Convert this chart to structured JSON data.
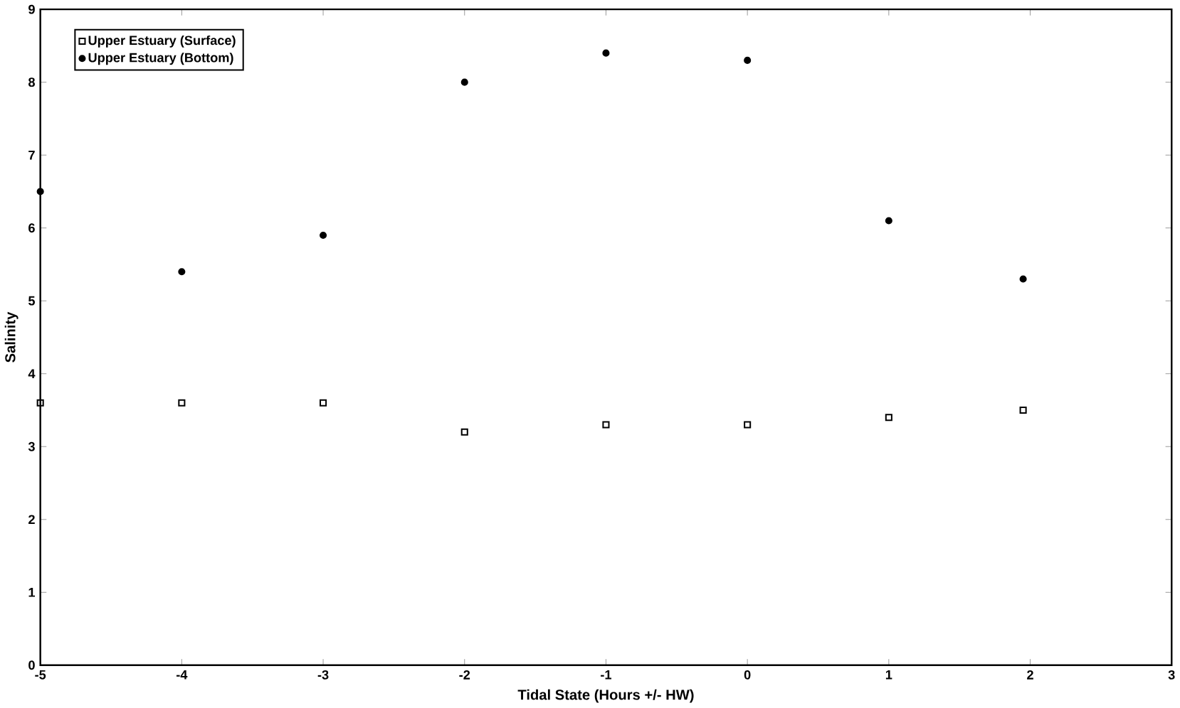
{
  "chart_data": {
    "type": "scatter",
    "xlabel": "Tidal State (Hours +/- HW)",
    "ylabel": "Salinity",
    "x": [
      -5,
      -4,
      -3,
      -2,
      -1,
      0,
      1,
      1.95
    ],
    "series": [
      {
        "name": "Upper Estuary (Surface)",
        "color": "#000000",
        "marker": "square",
        "values": [
          3.6,
          3.6,
          3.6,
          3.2,
          3.3,
          3.3,
          3.4,
          3.5
        ]
      },
      {
        "name": "Upper Estuary (Bottom)",
        "color": "#000000",
        "marker": "circle",
        "values": [
          6.5,
          5.4,
          5.9,
          8.0,
          8.4,
          8.3,
          6.1,
          5.3
        ]
      }
    ],
    "xlim": [
      -5,
      3
    ],
    "xticks": [
      -5,
      -4,
      -3,
      -2,
      -1,
      0,
      1,
      2,
      3
    ],
    "ylim": [
      0,
      9
    ],
    "yticks": [
      0,
      1,
      2,
      3,
      4,
      5,
      6,
      7,
      8,
      9
    ],
    "grid": false,
    "legend": "top left"
  }
}
